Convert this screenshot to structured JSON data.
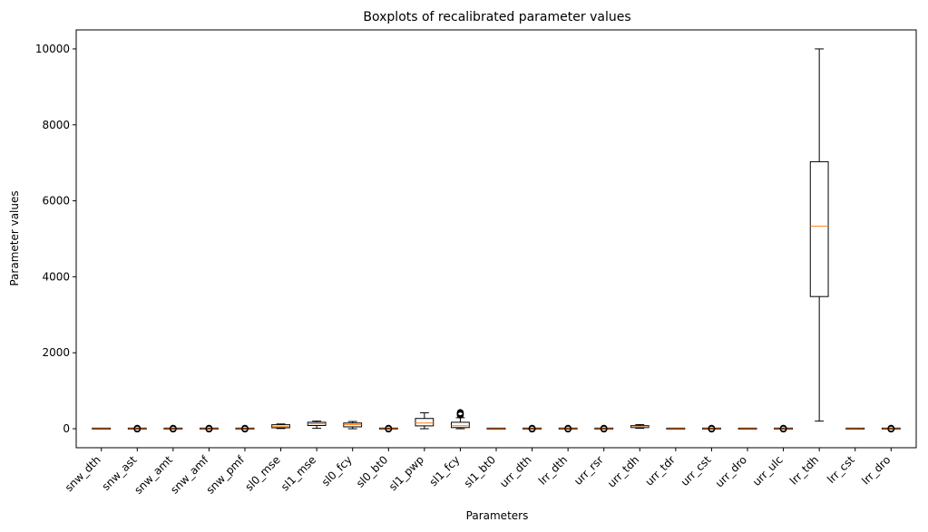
{
  "chart_data": {
    "type": "box",
    "title": "Boxplots of recalibrated parameter values",
    "xlabel": "Parameters",
    "ylabel": "Parameter values",
    "ylim": [
      -500,
      10500
    ],
    "yticks": [
      0,
      2000,
      4000,
      6000,
      8000,
      10000
    ],
    "grid": false,
    "categories": [
      "snw_dth",
      "snw_ast",
      "snw_amt",
      "snw_amf",
      "snw_pmf",
      "sl0_mse",
      "sl1_mse",
      "sl0_fcy",
      "sl0_bt0",
      "sl1_pwp",
      "sl1_fcy",
      "sl1_bt0",
      "urr_dth",
      "lrr_dth",
      "urr_rsr",
      "urr_tdh",
      "urr_tdr",
      "urr_cst",
      "urr_dro",
      "urr_ulc",
      "lrr_tdh",
      "lrr_cst",
      "lrr_dro"
    ],
    "boxes": [
      {
        "whislo": 0,
        "q1": 0,
        "med": 1,
        "q3": 2,
        "whishi": 5,
        "fliers": []
      },
      {
        "whislo": 0,
        "q1": 0,
        "med": 1,
        "q3": 3,
        "whishi": 6,
        "fliers": [
          -8,
          -5,
          8,
          12
        ]
      },
      {
        "whislo": 0,
        "q1": 0,
        "med": 1,
        "q3": 3,
        "whishi": 6,
        "fliers": [
          -8,
          -5,
          8,
          12
        ]
      },
      {
        "whislo": 0,
        "q1": 0,
        "med": 1,
        "q3": 3,
        "whishi": 6,
        "fliers": [
          -8,
          -5,
          8,
          12
        ]
      },
      {
        "whislo": 0,
        "q1": 0,
        "med": 1,
        "q3": 3,
        "whishi": 6,
        "fliers": [
          -8,
          -5,
          8,
          12
        ]
      },
      {
        "whislo": 5,
        "q1": 25,
        "med": 55,
        "q3": 105,
        "whishi": 125,
        "fliers": []
      },
      {
        "whislo": 10,
        "q1": 85,
        "med": 130,
        "q3": 170,
        "whishi": 200,
        "fliers": []
      },
      {
        "whislo": 0,
        "q1": 50,
        "med": 110,
        "q3": 150,
        "whishi": 190,
        "fliers": []
      },
      {
        "whislo": 0,
        "q1": 0,
        "med": 1,
        "q3": 3,
        "whishi": 6,
        "fliers": [
          -8,
          -5,
          8,
          12
        ]
      },
      {
        "whislo": 0,
        "q1": 75,
        "med": 150,
        "q3": 270,
        "whishi": 420,
        "fliers": []
      },
      {
        "whislo": 0,
        "q1": 30,
        "med": 80,
        "q3": 170,
        "whishi": 290,
        "fliers": [
          360,
          385,
          405,
          425
        ]
      },
      {
        "whislo": 0,
        "q1": 0,
        "med": 1,
        "q3": 2,
        "whishi": 5,
        "fliers": []
      },
      {
        "whislo": 0,
        "q1": 0,
        "med": 1,
        "q3": 3,
        "whishi": 6,
        "fliers": [
          -8,
          -5,
          8,
          12
        ]
      },
      {
        "whislo": 0,
        "q1": 0,
        "med": 1,
        "q3": 3,
        "whishi": 6,
        "fliers": [
          -8,
          -5,
          8,
          12
        ]
      },
      {
        "whislo": 0,
        "q1": 0,
        "med": 1,
        "q3": 3,
        "whishi": 6,
        "fliers": [
          -8,
          -5,
          8,
          12
        ]
      },
      {
        "whislo": 10,
        "q1": 30,
        "med": 45,
        "q3": 80,
        "whishi": 110,
        "fliers": []
      },
      {
        "whislo": 0,
        "q1": 0,
        "med": 1,
        "q3": 2,
        "whishi": 5,
        "fliers": []
      },
      {
        "whislo": 0,
        "q1": 0,
        "med": 1,
        "q3": 3,
        "whishi": 6,
        "fliers": [
          -8,
          -5,
          8,
          12
        ]
      },
      {
        "whislo": 0,
        "q1": 0,
        "med": 1,
        "q3": 2,
        "whishi": 5,
        "fliers": []
      },
      {
        "whislo": 0,
        "q1": 0,
        "med": 1,
        "q3": 3,
        "whishi": 6,
        "fliers": [
          -8,
          -5,
          8,
          12
        ]
      },
      {
        "whislo": 200,
        "q1": 3480,
        "med": 5330,
        "q3": 7030,
        "whishi": 10000,
        "fliers": []
      },
      {
        "whislo": 0,
        "q1": 0,
        "med": 1,
        "q3": 2,
        "whishi": 5,
        "fliers": []
      },
      {
        "whislo": 0,
        "q1": 0,
        "med": 1,
        "q3": 3,
        "whishi": 6,
        "fliers": [
          -8,
          -5,
          8,
          12
        ]
      }
    ],
    "colors": {
      "box": "#000000",
      "box_fill": "#ffffff",
      "median": "#ff7f0e",
      "whisker": "#000000",
      "flier": "#000000"
    }
  }
}
